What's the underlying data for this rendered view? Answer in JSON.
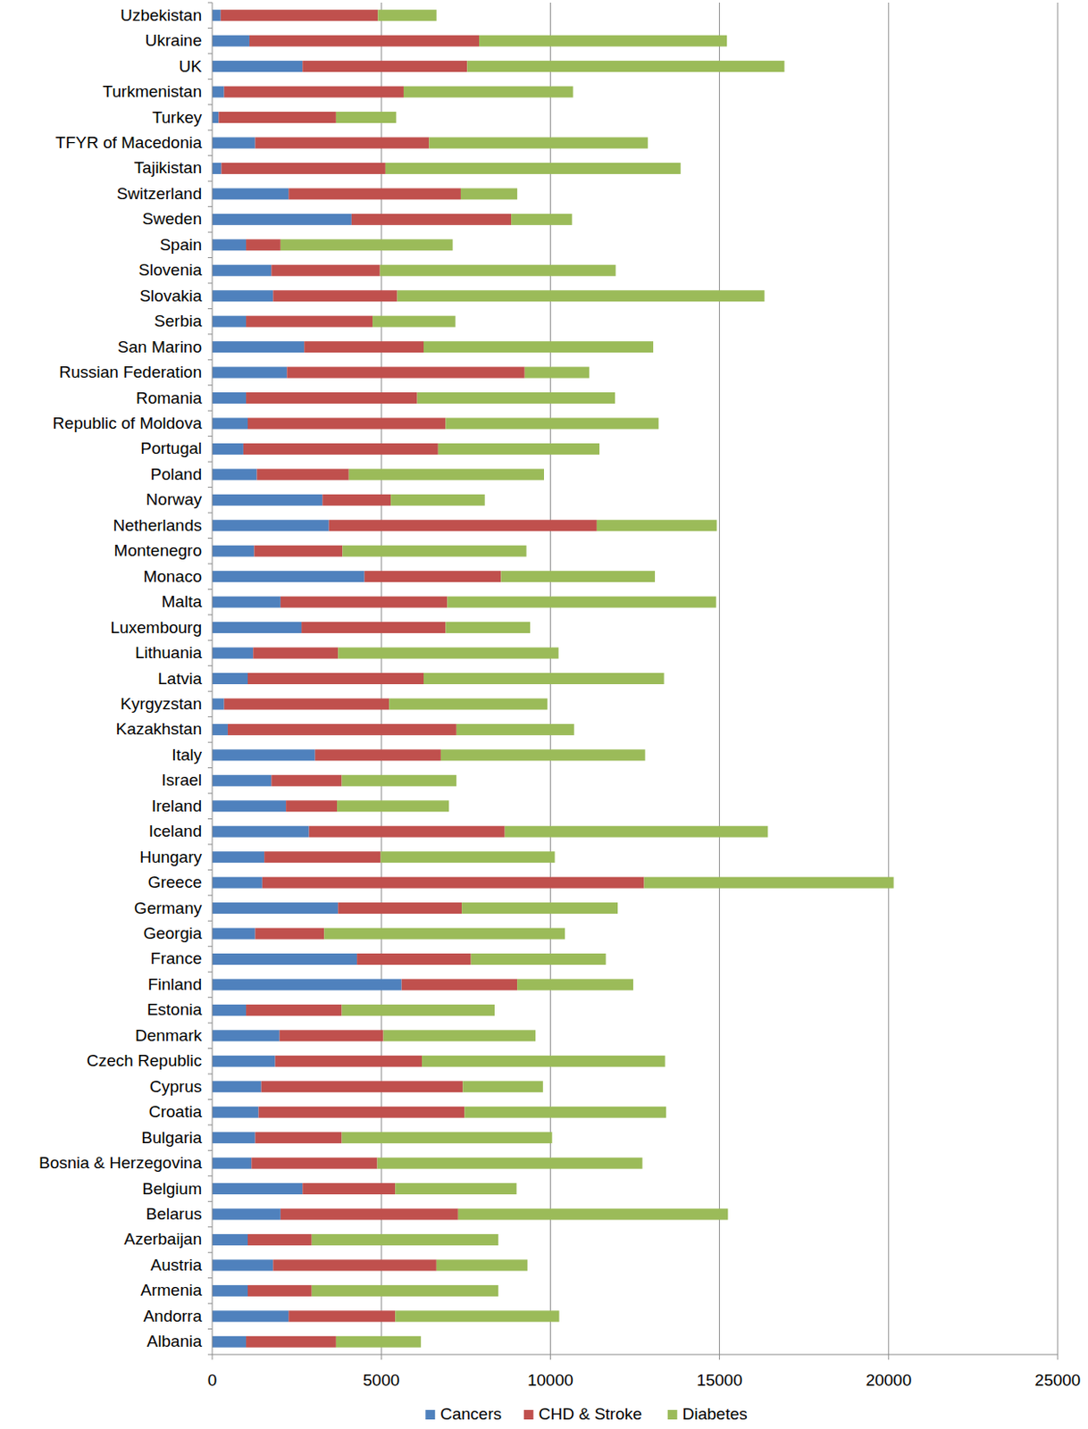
{
  "chart_data": {
    "type": "bar",
    "orientation": "horizontal",
    "stacked": true,
    "grid": true,
    "legend": "bottom",
    "categories": [
      "Uzbekistan",
      "Ukraine",
      "UK",
      "Turkmenistan",
      "Turkey",
      "TFYR of Macedonia",
      "Tajikistan",
      "Switzerland",
      "Sweden",
      "Spain",
      "Slovenia",
      "Slovakia",
      "Serbia",
      "San Marino",
      "Russian Federation",
      "Romania",
      "Republic of Moldova",
      "Portugal",
      "Poland",
      "Norway",
      "Netherlands",
      "Montenegro",
      "Monaco",
      "Malta",
      "Luxembourg",
      "Lithuania",
      "Latvia",
      "Kyrgyzstan",
      "Kazakhstan",
      "Italy",
      "Israel",
      "Ireland",
      "Iceland",
      "Hungary",
      "Greece",
      "Germany",
      "Georgia",
      "France",
      "Finland",
      "Estonia",
      "Denmark",
      "Czech Republic",
      "Cyprus",
      "Croatia",
      "Bulgaria",
      "Bosnia & Herzegovina",
      "Belgium",
      "Belarus",
      "Azerbaijan",
      "Austria",
      "Armenia",
      "Andorra",
      "Albania"
    ],
    "series": [
      {
        "name": "Cancers",
        "color": "#4f81bd",
        "values": [
          250,
          1100,
          2670,
          350,
          190,
          1270,
          270,
          2260,
          4120,
          1000,
          1750,
          1800,
          1000,
          2720,
          2210,
          1000,
          1050,
          920,
          1320,
          3260,
          3450,
          1240,
          4500,
          2020,
          2640,
          1210,
          1050,
          350,
          460,
          3040,
          1750,
          2180,
          2860,
          1540,
          1480,
          3720,
          1270,
          4280,
          5600,
          1000,
          1990,
          1860,
          1450,
          1370,
          1270,
          1160,
          2670,
          2020,
          1050,
          1800,
          1050,
          2260,
          1000
        ]
      },
      {
        "name": "CHD & Stroke",
        "color": "#c0504d",
        "values": [
          4650,
          6790,
          4870,
          5310,
          3470,
          5140,
          4850,
          5090,
          4720,
          1020,
          3210,
          3670,
          3740,
          3530,
          7030,
          5060,
          5850,
          5760,
          2720,
          2020,
          7920,
          2610,
          4040,
          4930,
          4260,
          2510,
          5200,
          4880,
          6760,
          3720,
          2080,
          1510,
          5790,
          3440,
          11290,
          3660,
          2040,
          3370,
          3420,
          2830,
          3070,
          4340,
          5960,
          6090,
          2560,
          3720,
          2740,
          5250,
          1890,
          4830,
          1890,
          3150,
          2660
        ]
      },
      {
        "name": "Diabetes",
        "color": "#9bbb59",
        "values": [
          1730,
          7330,
          9380,
          5010,
          1780,
          6470,
          8730,
          1670,
          1800,
          5090,
          6970,
          10860,
          2450,
          6790,
          1910,
          5850,
          6300,
          4770,
          5770,
          2780,
          3550,
          5440,
          4550,
          7950,
          2500,
          6520,
          7110,
          4680,
          3480,
          6040,
          3390,
          3310,
          7780,
          5150,
          7380,
          4610,
          7120,
          3990,
          3430,
          4520,
          4500,
          7190,
          2370,
          5960,
          6220,
          7840,
          3590,
          7980,
          5520,
          2690,
          5520,
          4850,
          2510
        ]
      }
    ],
    "xlim": [
      0,
      25000
    ],
    "xticks": [
      0,
      5000,
      10000,
      15000,
      20000,
      25000
    ]
  }
}
